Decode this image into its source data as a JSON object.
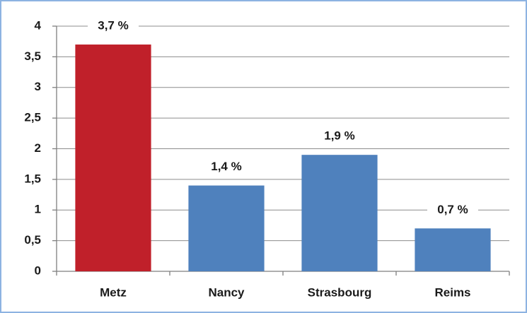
{
  "chart_data": {
    "type": "bar",
    "categories": [
      "Metz",
      "Nancy",
      "Strasbourg",
      "Reims"
    ],
    "values": [
      3.7,
      1.4,
      1.9,
      0.7
    ],
    "value_labels": [
      "3,7 %",
      "1,4 %",
      "1,9 %",
      "0,7 %"
    ],
    "colors": [
      "#c0202a",
      "#4f81bd",
      "#4f81bd",
      "#4f81bd"
    ],
    "ylim": [
      0,
      4
    ],
    "yticks": [
      0,
      {
        "value": 0.5,
        "label": "0,5"
      },
      1,
      {
        "value": 1.5,
        "label": "1,5"
      },
      2,
      {
        "value": 2.5,
        "label": "2,5"
      },
      3,
      {
        "value": 3.5,
        "label": "3,5"
      },
      4
    ],
    "grid": true
  }
}
